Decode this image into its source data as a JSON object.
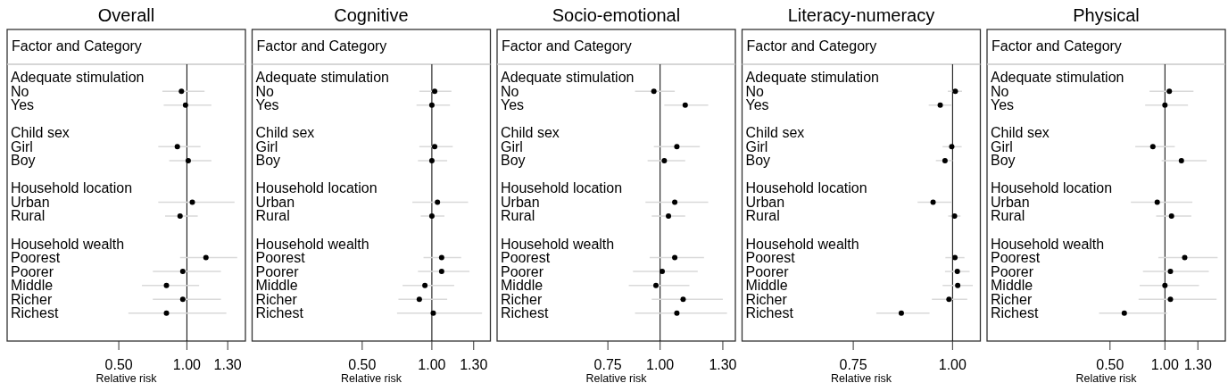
{
  "chart_data": [
    {
      "type": "scatter",
      "title": "Overall",
      "ylabel": "Factor and Category",
      "xlabel": "Relative risk",
      "orientation": "horizontal",
      "marker": "circle",
      "categories": [
        "Adequate stimulation",
        "No",
        "Yes",
        null,
        "Child sex",
        "Girl",
        "Boy",
        null,
        "Household location",
        "Urban",
        "Rural",
        null,
        "Household wealth",
        "Poorest",
        "Poorer",
        "Middle",
        "Richer",
        "Richest"
      ],
      "xlim": [
        -0.32,
        1.43
      ],
      "xticks": [
        {
          "value": 0.5,
          "label": "0.50"
        },
        {
          "value": 1,
          "label": "1.00"
        },
        {
          "value": 1.3,
          "label": "1.30"
        }
      ],
      "ref_lines": [
        {
          "axis": "x",
          "value": 1,
          "color": "#000000"
        }
      ],
      "series": [
        {
          "color": "#000000",
          "values": [
            null,
            0.96,
            0.99,
            null,
            null,
            0.93,
            1.01,
            null,
            null,
            1.04,
            0.95,
            null,
            null,
            1.14,
            0.97,
            0.85,
            0.97,
            0.85
          ],
          "errors": [
            null,
            [
              0.82,
              1.13
            ],
            [
              0.83,
              1.18
            ],
            null,
            null,
            [
              0.79,
              1.1
            ],
            [
              0.87,
              1.18
            ],
            null,
            null,
            [
              0.79,
              1.35
            ],
            [
              0.84,
              1.08
            ],
            null,
            null,
            [
              0.95,
              1.37
            ],
            [
              0.75,
              1.25
            ],
            [
              0.67,
              1.09
            ],
            [
              0.75,
              1.25
            ],
            [
              0.57,
              1.29
            ]
          ]
        }
      ]
    },
    {
      "type": "scatter",
      "title": "Cognitive",
      "ylabel": "Factor and Category",
      "xlabel": "Relative risk",
      "orientation": "horizontal",
      "marker": "circle",
      "categories": [
        "Adequate stimulation",
        "No",
        "Yes",
        null,
        "Child sex",
        "Girl",
        "Boy",
        null,
        "Household location",
        "Urban",
        "Rural",
        null,
        "Household wealth",
        "Poorest",
        "Poorer",
        "Middle",
        "Richer",
        "Richest"
      ],
      "xlim": [
        -0.29,
        1.42
      ],
      "xticks": [
        {
          "value": 0.5,
          "label": "0.50"
        },
        {
          "value": 1,
          "label": "1.00"
        },
        {
          "value": 1.3,
          "label": "1.30"
        }
      ],
      "ref_lines": [
        {
          "axis": "x",
          "value": 1,
          "color": "#000000"
        }
      ],
      "series": [
        {
          "color": "#000000",
          "values": [
            null,
            1.02,
            1.0,
            null,
            null,
            1.02,
            1.0,
            null,
            null,
            1.04,
            1.0,
            null,
            null,
            1.07,
            1.07,
            0.95,
            0.91,
            1.01
          ],
          "errors": [
            null,
            [
              0.91,
              1.14
            ],
            [
              0.89,
              1.13
            ],
            null,
            null,
            [
              0.91,
              1.15
            ],
            [
              0.9,
              1.11
            ],
            null,
            null,
            [
              0.86,
              1.26
            ],
            [
              0.92,
              1.09
            ],
            null,
            null,
            [
              0.94,
              1.21
            ],
            [
              0.9,
              1.27
            ],
            [
              0.79,
              1.16
            ],
            [
              0.76,
              1.11
            ],
            [
              0.75,
              1.36
            ]
          ]
        }
      ]
    },
    {
      "type": "scatter",
      "title": "Socio-emotional",
      "ylabel": "Factor and Category",
      "xlabel": "Relative risk",
      "orientation": "horizontal",
      "marker": "circle",
      "categories": [
        "Adequate stimulation",
        "No",
        "Yes",
        null,
        "Child sex",
        "Girl",
        "Boy",
        null,
        "Household location",
        "Urban",
        "Rural",
        null,
        "Household wealth",
        "Poorest",
        "Poorer",
        "Middle",
        "Richer",
        "Richest"
      ],
      "xlim": [
        0.22,
        1.36
      ],
      "xticks": [
        {
          "value": 0.75,
          "label": "0.75"
        },
        {
          "value": 1,
          "label": "1.00"
        },
        {
          "value": 1.3,
          "label": "1.30"
        }
      ],
      "ref_lines": [
        {
          "axis": "x",
          "value": 1,
          "color": "#000000"
        }
      ],
      "series": [
        {
          "color": "#000000",
          "values": [
            null,
            0.97,
            1.12,
            null,
            null,
            1.08,
            1.02,
            null,
            null,
            1.07,
            1.04,
            null,
            null,
            1.07,
            1.01,
            0.98,
            1.11,
            1.08
          ],
          "errors": [
            null,
            [
              0.88,
              1.07
            ],
            [
              1.02,
              1.23
            ],
            null,
            null,
            [
              0.97,
              1.19
            ],
            [
              0.94,
              1.12
            ],
            null,
            null,
            [
              0.93,
              1.23
            ],
            [
              0.96,
              1.12
            ],
            null,
            null,
            [
              0.95,
              1.21
            ],
            [
              0.87,
              1.18
            ],
            [
              0.85,
              1.14
            ],
            [
              0.96,
              1.3
            ],
            [
              0.88,
              1.32
            ]
          ]
        }
      ]
    },
    {
      "type": "scatter",
      "title": "Literacy-numeracy",
      "ylabel": "Factor and Category",
      "xlabel": "Relative risk",
      "orientation": "horizontal",
      "marker": "circle",
      "categories": [
        "Adequate stimulation",
        "No",
        "Yes",
        null,
        "Child sex",
        "Girl",
        "Boy",
        null,
        "Household location",
        "Urban",
        "Rural",
        null,
        "Household wealth",
        "Poorest",
        "Poorer",
        "Middle",
        "Richer",
        "Richest"
      ],
      "xlim": [
        0.47,
        1.07
      ],
      "xticks": [
        {
          "value": 0.75,
          "label": "0.75"
        },
        {
          "value": 1,
          "label": "1.00"
        }
      ],
      "ref_lines": [
        {
          "axis": "x",
          "value": 1,
          "color": "#000000"
        }
      ],
      "series": [
        {
          "color": "#000000",
          "values": [
            null,
            1.007,
            0.969,
            null,
            null,
            0.998,
            0.981,
            null,
            null,
            0.951,
            1.005,
            null,
            null,
            1.006,
            1.012,
            1.013,
            0.991,
            0.871
          ],
          "errors": [
            null,
            [
              0.988,
              1.024
            ],
            [
              0.94,
              0.999
            ],
            null,
            null,
            [
              0.975,
              1.023
            ],
            [
              0.958,
              1.0
            ],
            null,
            null,
            [
              0.912,
              0.997
            ],
            [
              0.989,
              1.02
            ],
            null,
            null,
            [
              0.982,
              1.03
            ],
            [
              0.981,
              1.043
            ],
            [
              0.975,
              1.051
            ],
            [
              0.948,
              1.037
            ],
            [
              0.808,
              0.942
            ]
          ]
        }
      ]
    },
    {
      "type": "scatter",
      "title": "Physical",
      "ylabel": "Factor and Category",
      "xlabel": "Relative risk",
      "orientation": "horizontal",
      "marker": "circle",
      "categories": [
        "Adequate stimulation",
        "No",
        "Yes",
        null,
        "Child sex",
        "Girl",
        "Boy",
        null,
        "Household location",
        "Urban",
        "Rural",
        null,
        "Household wealth",
        "Poorest",
        "Poorer",
        "Middle",
        "Richer",
        "Richest"
      ],
      "xlim": [
        -0.62,
        1.55
      ],
      "xticks": [
        {
          "value": 0.5,
          "label": "0.50"
        },
        {
          "value": 1,
          "label": "1.00"
        },
        {
          "value": 1.3,
          "label": "1.30"
        }
      ],
      "ref_lines": [
        {
          "axis": "x",
          "value": 1,
          "color": "#000000"
        }
      ],
      "series": [
        {
          "color": "#000000",
          "values": [
            null,
            1.04,
            1.0,
            null,
            null,
            0.89,
            1.15,
            null,
            null,
            0.93,
            1.06,
            null,
            null,
            1.18,
            1.05,
            1.0,
            1.05,
            0.63
          ],
          "errors": [
            null,
            [
              0.86,
              1.26
            ],
            [
              0.82,
              1.21
            ],
            null,
            null,
            [
              0.73,
              1.09
            ],
            [
              0.97,
              1.38
            ],
            null,
            null,
            [
              0.69,
              1.25
            ],
            [
              0.92,
              1.24
            ],
            null,
            null,
            [
              0.94,
              1.48
            ],
            [
              0.8,
              1.4
            ],
            [
              0.77,
              1.31
            ],
            [
              0.76,
              1.47
            ],
            [
              0.4,
              1.02
            ]
          ]
        }
      ]
    }
  ]
}
